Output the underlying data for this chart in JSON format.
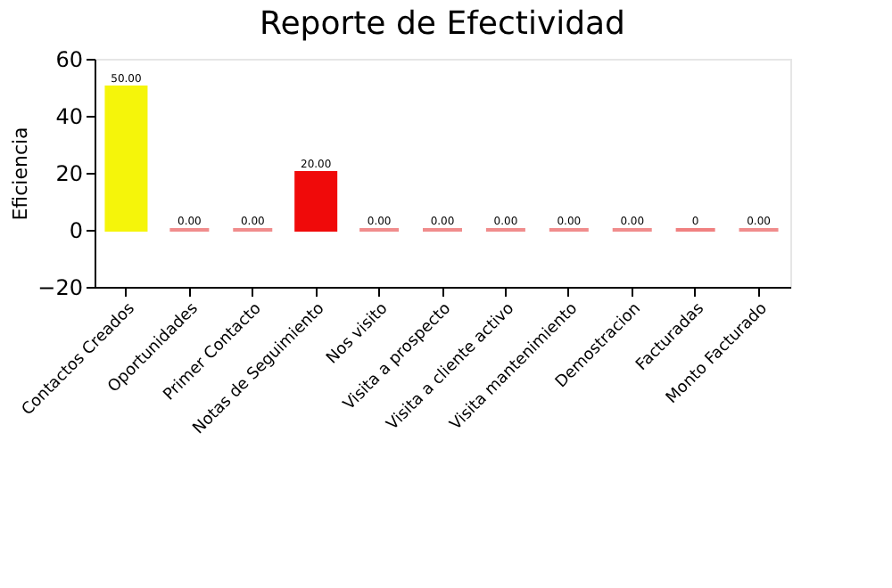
{
  "chart_data": {
    "type": "bar",
    "title": "Reporte de Efectividad",
    "ylabel": "Eficiencia",
    "categories": [
      "Contactos Creados",
      "Oportunidades",
      "Primer Contacto",
      "Notas de Seguimiento",
      "Nos visito",
      "Visita a prospecto",
      "Visita a cliente activo",
      "Visita mantenimiento",
      "Demostracion",
      "Facturadas",
      "Monto Facturado"
    ],
    "values": [
      50,
      0,
      0,
      20,
      0,
      0,
      0,
      0,
      0,
      0,
      0
    ],
    "colors": [
      "#f5f50a",
      "#f08c8c",
      "#f08c8c",
      "#f00a0a",
      "#f08c8c",
      "#f08c8c",
      "#f08c8c",
      "#f08c8c",
      "#f08c8c",
      "#f08080",
      "#f08c8c"
    ],
    "value_labels": [
      "50.00",
      "0.00",
      "0.00",
      "20.00",
      "0.00",
      "0.00",
      "0.00",
      "0.00",
      "0.00",
      "0",
      "0.00"
    ],
    "ylim": [
      -20,
      60
    ],
    "yticks": [
      -20,
      0,
      20,
      40,
      60
    ],
    "grid": false
  }
}
